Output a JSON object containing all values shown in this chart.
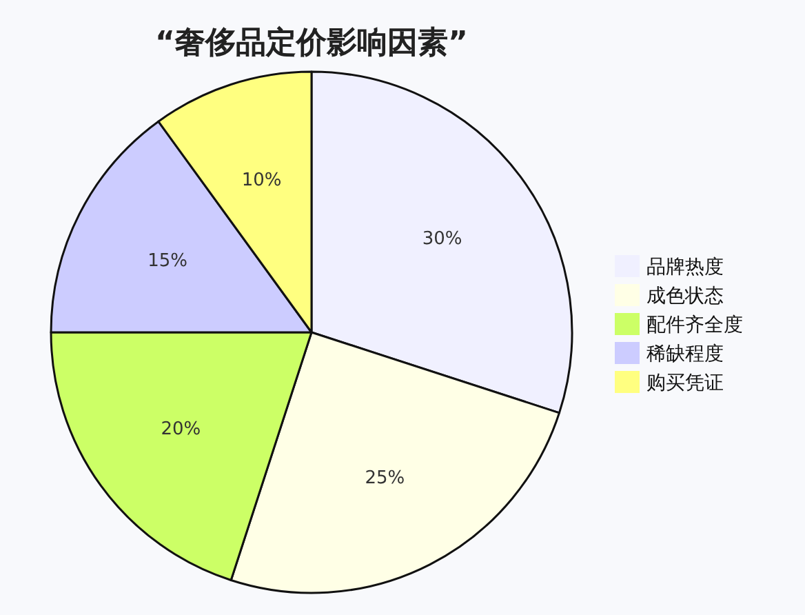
{
  "chart_data": {
    "type": "pie",
    "title": "“奢侈品定价影响因素”",
    "categories": [
      "品牌热度",
      "成色状态",
      "配件齐全度",
      "稀缺程度",
      "购买凭证"
    ],
    "values": [
      30,
      25,
      20,
      15,
      10
    ],
    "colors": [
      "#f0f0ff",
      "#ffffe6",
      "#ccff66",
      "#ccccff",
      "#ffff80"
    ],
    "value_labels": [
      "30%",
      "25%",
      "20%",
      "15%",
      "10%"
    ],
    "legend": "right"
  }
}
